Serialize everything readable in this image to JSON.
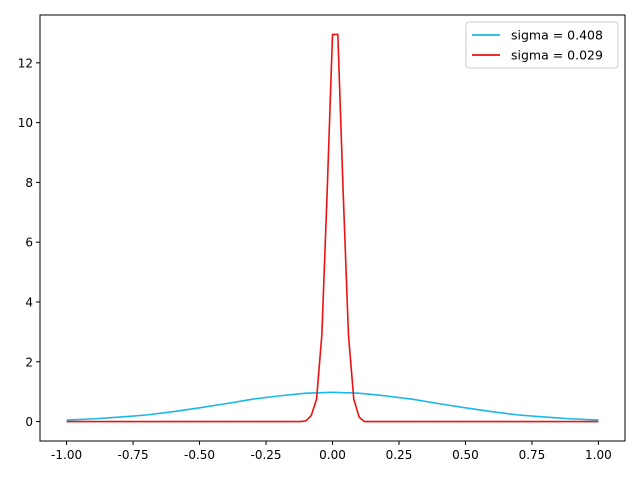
{
  "chart_data": {
    "type": "line",
    "title": "",
    "xlabel": "",
    "ylabel": "",
    "xlim": [
      -1.1,
      1.1
    ],
    "ylim": [
      -0.65,
      13.6
    ],
    "xticks": [
      -1.0,
      -0.75,
      -0.5,
      -0.25,
      0.0,
      0.25,
      0.5,
      0.75,
      1.0
    ],
    "xtick_labels": [
      "-1.00",
      "-0.75",
      "-0.50",
      "-0.25",
      "0.00",
      "0.25",
      "0.50",
      "0.75",
      "1.00"
    ],
    "yticks": [
      0,
      2,
      4,
      6,
      8,
      10,
      12
    ],
    "ytick_labels": [
      "0",
      "2",
      "4",
      "6",
      "8",
      "10",
      "12"
    ],
    "grid": false,
    "legend_position": "top-right",
    "series": [
      {
        "name": "sigma = 0.408",
        "color": "#1ab8e8",
        "x": [
          -1.0,
          -0.9,
          -0.8,
          -0.7,
          -0.6,
          -0.5,
          -0.4,
          -0.3,
          -0.2,
          -0.1,
          0.0,
          0.1,
          0.2,
          0.3,
          0.4,
          0.5,
          0.6,
          0.7,
          0.8,
          0.9,
          1.0
        ],
        "y": [
          0.05,
          0.09,
          0.15,
          0.22,
          0.33,
          0.46,
          0.6,
          0.75,
          0.86,
          0.95,
          0.98,
          0.95,
          0.86,
          0.75,
          0.6,
          0.46,
          0.33,
          0.22,
          0.15,
          0.09,
          0.05
        ]
      },
      {
        "name": "sigma = 0.029",
        "color": "#ee1111",
        "x": [
          -1.0,
          -0.12,
          -0.1,
          -0.08,
          -0.06,
          -0.04,
          -0.02,
          0.0,
          0.02,
          0.04,
          0.06,
          0.08,
          0.1,
          0.12,
          1.0
        ],
        "y": [
          0.0,
          0.0,
          0.02,
          0.2,
          0.75,
          2.9,
          7.7,
          12.95,
          12.95,
          7.7,
          2.9,
          0.75,
          0.15,
          0.0,
          0.0
        ]
      }
    ]
  }
}
